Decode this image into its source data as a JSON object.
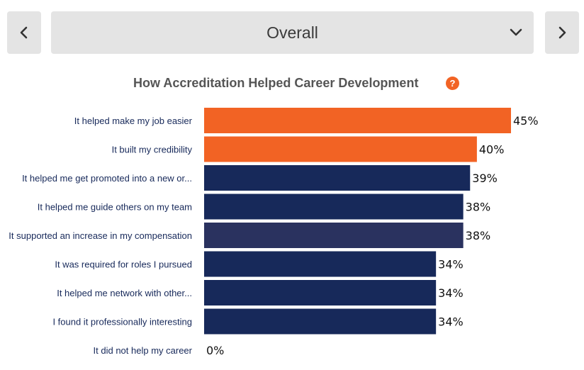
{
  "selector": {
    "value": "Overall"
  },
  "icons": {
    "prev": "chevron-left-icon",
    "next": "chevron-right-icon",
    "dropdown": "chevron-down-icon",
    "help": "help-icon"
  },
  "help": {
    "glyph": "?"
  },
  "colors": {
    "highlight": "#f26324",
    "primary": "#17295a",
    "secondary": "#2a325f",
    "text": "#17295a"
  },
  "chart_data": {
    "type": "bar",
    "orientation": "horizontal",
    "title": "How Accreditation Helped Career Development",
    "categories": [
      "It helped make my job easier",
      "It built my credibility",
      "It helped me get promoted into a new or...",
      "It helped me guide others on my team",
      "It supported an increase in my compensation",
      "It was required for roles I pursued",
      "It helped me network with other...",
      "I found it professionally interesting",
      "It did not help my career"
    ],
    "values": [
      45,
      40,
      39,
      38,
      38,
      34,
      34,
      34,
      0
    ],
    "value_labels": [
      "45%",
      "40%",
      "39%",
      "38%",
      "38%",
      "34%",
      "34%",
      "34%",
      "0%"
    ],
    "bar_colors": [
      "#f26324",
      "#f26324",
      "#17295a",
      "#17295a",
      "#2a325f",
      "#17295a",
      "#17295a",
      "#17295a",
      "#17295a"
    ],
    "xlim": [
      0,
      45
    ],
    "grid": false,
    "legend": "none"
  }
}
